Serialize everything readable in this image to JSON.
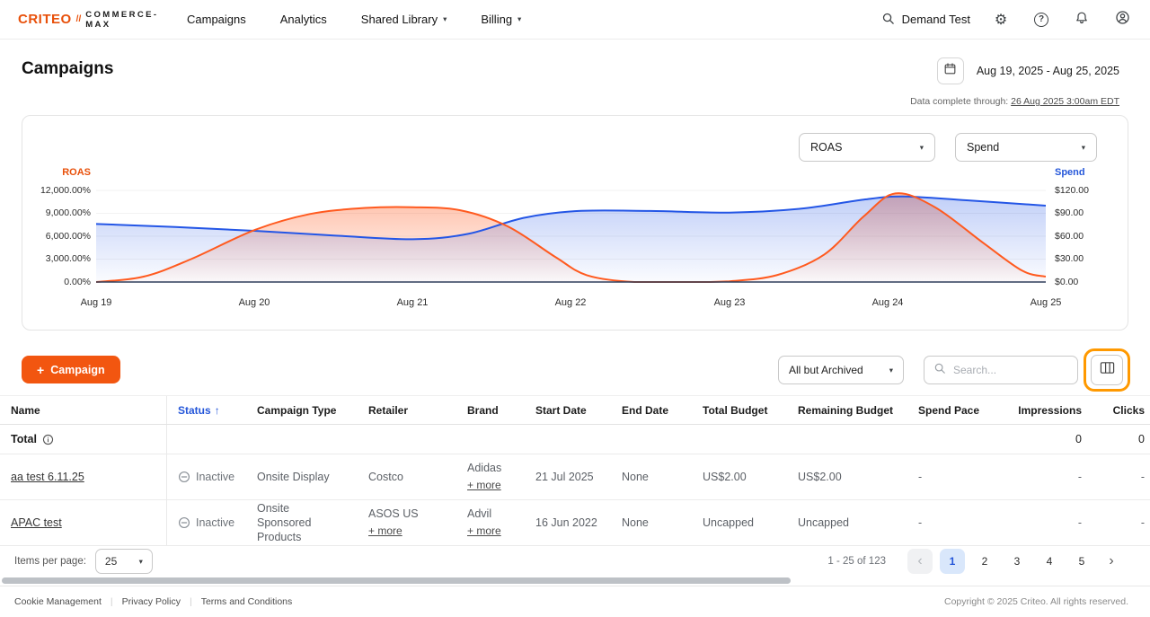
{
  "icons": {
    "caret_down": "▾",
    "plus": "+",
    "sort_asc": "↑",
    "chevron_left": "‹",
    "chevron_right": "›",
    "divider": "|",
    "help": "?"
  },
  "colors": {
    "accent": "#f25610",
    "link_blue": "#2456d9",
    "chart_orange": "#ff5a1f",
    "chart_blue": "#2456e6",
    "highlight_ring": "#ff9900"
  },
  "brand": {
    "name": "CRITEO",
    "divider": "//",
    "product": "COMMERCE-MAX"
  },
  "nav": {
    "items": [
      {
        "label": "Campaigns"
      },
      {
        "label": "Analytics"
      },
      {
        "label": "Shared Library"
      },
      {
        "label": "Billing"
      }
    ],
    "account_name": "Demand Test"
  },
  "page": {
    "title": "Campaigns",
    "date_range": "Aug 19, 2025 - Aug 25, 2025",
    "data_complete_label": "Data complete through:",
    "data_complete_value": "26 Aug 2025 3:00am EDT"
  },
  "chart": {
    "left_select": "ROAS",
    "right_select": "Spend"
  },
  "chart_data": {
    "type": "line",
    "x_labels": [
      "Aug 19",
      "Aug 20",
      "Aug 21",
      "Aug 22",
      "Aug 23",
      "Aug 24",
      "Aug 25"
    ],
    "left_axis": {
      "label": "ROAS",
      "ticks": [
        "12,000.00%",
        "9,000.00%",
        "6,000.00%",
        "3,000.00%",
        "0.00%"
      ],
      "min": 0,
      "max": 12000
    },
    "right_axis": {
      "label": "Spend",
      "ticks": [
        "$120.00",
        "$90.00",
        "$60.00",
        "$30.00",
        "$0.00"
      ],
      "min": 0,
      "max": 120
    },
    "legend": "none",
    "series": [
      {
        "name": "ROAS",
        "axis": "left",
        "color": "#ff5a1f",
        "x": [
          0,
          0.3,
          0.6,
          1,
          1.35,
          1.7,
          2,
          2.3,
          2.6,
          2.9,
          3.1,
          3.4,
          3.8,
          4,
          4.3,
          4.6,
          4.85,
          5.05,
          5.3,
          5.6,
          5.85,
          6
        ],
        "y": [
          0,
          700,
          3000,
          6800,
          8900,
          9700,
          9800,
          9400,
          7300,
          3300,
          900,
          0,
          0,
          100,
          900,
          3600,
          8600,
          11600,
          9800,
          5200,
          1500,
          700
        ]
      },
      {
        "name": "Spend",
        "axis": "right",
        "color": "#2456e6",
        "x": [
          0,
          0.5,
          1,
          1.5,
          2,
          2.35,
          2.7,
          3.05,
          3.5,
          4,
          4.45,
          4.85,
          5.1,
          5.5,
          6
        ],
        "y": [
          76,
          72,
          67,
          61,
          56,
          63,
          84,
          93,
          93,
          91,
          96,
          108,
          112,
          107,
          100
        ]
      }
    ]
  },
  "toolbar": {
    "new_campaign_label": "Campaign",
    "status_filter": "All but Archived",
    "search_placeholder": "Search..."
  },
  "table": {
    "columns": [
      "Name",
      "Status",
      "Campaign Type",
      "Retailer",
      "Brand",
      "Start Date",
      "End Date",
      "Total Budget",
      "Remaining Budget",
      "Spend Pace",
      "Impressions",
      "Clicks"
    ],
    "sort_column": "Status",
    "total_label": "Total",
    "total": {
      "impressions": "0",
      "clicks": "0"
    },
    "rows": [
      {
        "name": "aa test 6.11.25",
        "status": "Inactive",
        "campaign_type": "Onsite Display",
        "retailer": "Costco",
        "retailer_more": "",
        "brand": "Adidas",
        "brand_more": "+ more",
        "start_date": "21 Jul 2025",
        "end_date": "None",
        "total_budget": "US$2.00",
        "remaining_budget": "US$2.00",
        "spend_pace": "-",
        "impressions": "-",
        "clicks": "-"
      },
      {
        "name": "APAC test",
        "status": "Inactive",
        "campaign_type": "Onsite Sponsored Products",
        "retailer": "ASOS US",
        "retailer_more": "+ more",
        "brand": "Advil",
        "brand_more": "+ more",
        "start_date": "16 Jun 2022",
        "end_date": "None",
        "total_budget": "Uncapped",
        "remaining_budget": "Uncapped",
        "spend_pace": "-",
        "impressions": "-",
        "clicks": "-"
      }
    ]
  },
  "pagination": {
    "items_per_page_label": "Items per page:",
    "items_per_page": "25",
    "range": "1 - 25 of 123",
    "pages": [
      "1",
      "2",
      "3",
      "4",
      "5"
    ],
    "active_page": "1"
  },
  "footer": {
    "links": [
      "Cookie Management",
      "Privacy Policy",
      "Terms and Conditions"
    ],
    "copyright": "Copyright © 2025 Criteo. All rights reserved."
  }
}
